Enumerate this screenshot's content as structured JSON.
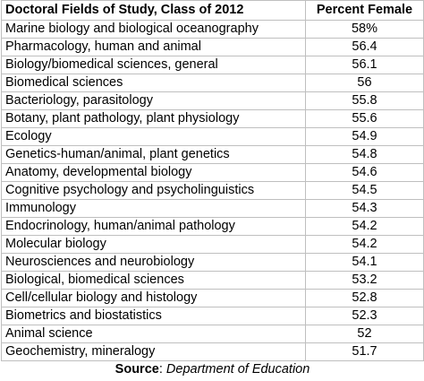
{
  "table": {
    "header": {
      "field": "Doctoral Fields of Study, Class of 2012",
      "percent": "Percent Female"
    },
    "rows": [
      {
        "field": "Marine biology and biological oceanography",
        "percent": "58%"
      },
      {
        "field": "Pharmacology, human and animal",
        "percent": "56.4"
      },
      {
        "field": "Biology/biomedical sciences, general",
        "percent": "56.1"
      },
      {
        "field": "Biomedical sciences",
        "percent": "56"
      },
      {
        "field": "Bacteriology, parasitology",
        "percent": "55.8"
      },
      {
        "field": "Botany, plant pathology, plant physiology",
        "percent": "55.6"
      },
      {
        "field": "Ecology",
        "percent": "54.9"
      },
      {
        "field": "Genetics-human/animal, plant genetics",
        "percent": "54.8"
      },
      {
        "field": "Anatomy, developmental biology",
        "percent": "54.6"
      },
      {
        "field": "Cognitive psychology and psycholinguistics",
        "percent": "54.5"
      },
      {
        "field": "Immunology",
        "percent": "54.3"
      },
      {
        "field": "Endocrinology, human/animal pathology",
        "percent": "54.2"
      },
      {
        "field": "Molecular biology",
        "percent": "54.2"
      },
      {
        "field": "Neurosciences and neurobiology",
        "percent": "54.1"
      },
      {
        "field": "Biological, biomedical sciences",
        "percent": "53.2"
      },
      {
        "field": "Cell/cellular biology and histology",
        "percent": "52.8"
      },
      {
        "field": "Biometrics and biostatistics",
        "percent": "52.3"
      },
      {
        "field": "Animal science",
        "percent": "52"
      },
      {
        "field": "Geochemistry, mineralogy",
        "percent": "51.7"
      }
    ]
  },
  "source": {
    "label": "Source",
    "separator": ": ",
    "value": "Department of Education"
  },
  "colors": {
    "gridline": "#bfbfbf",
    "text": "#000000",
    "background": "#ffffff"
  }
}
